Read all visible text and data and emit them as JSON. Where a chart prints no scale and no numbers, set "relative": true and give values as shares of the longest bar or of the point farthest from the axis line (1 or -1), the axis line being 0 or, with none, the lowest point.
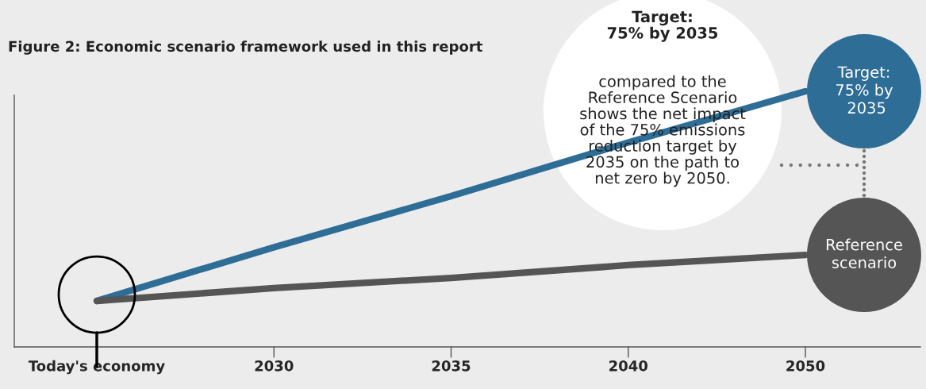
{
  "chart_data": {
    "type": "line",
    "relative": true,
    "title": "Figure 2: Economic scenario framework used in this report",
    "categories": [
      "Today's economy",
      "2030",
      "2035",
      "2040",
      "2050"
    ],
    "series": [
      {
        "name": "Target: 75% by 2035",
        "color": "#2e6d96",
        "values": [
          0.18,
          0.39,
          0.59,
          0.8,
          1.0
        ]
      },
      {
        "name": "Reference scenario",
        "color": "#555555",
        "values": [
          0.18,
          0.23,
          0.27,
          0.32,
          0.36
        ]
      }
    ],
    "annotations": [
      "Target:\n75% by 2035\ncompared to the\nReference Scenario\nshows the net impact\nof the 75% emissions\nreduction target by\n2035 on the path to\nnet zero by 2050."
    ],
    "tick_labels": "x",
    "grid": false
  }
}
